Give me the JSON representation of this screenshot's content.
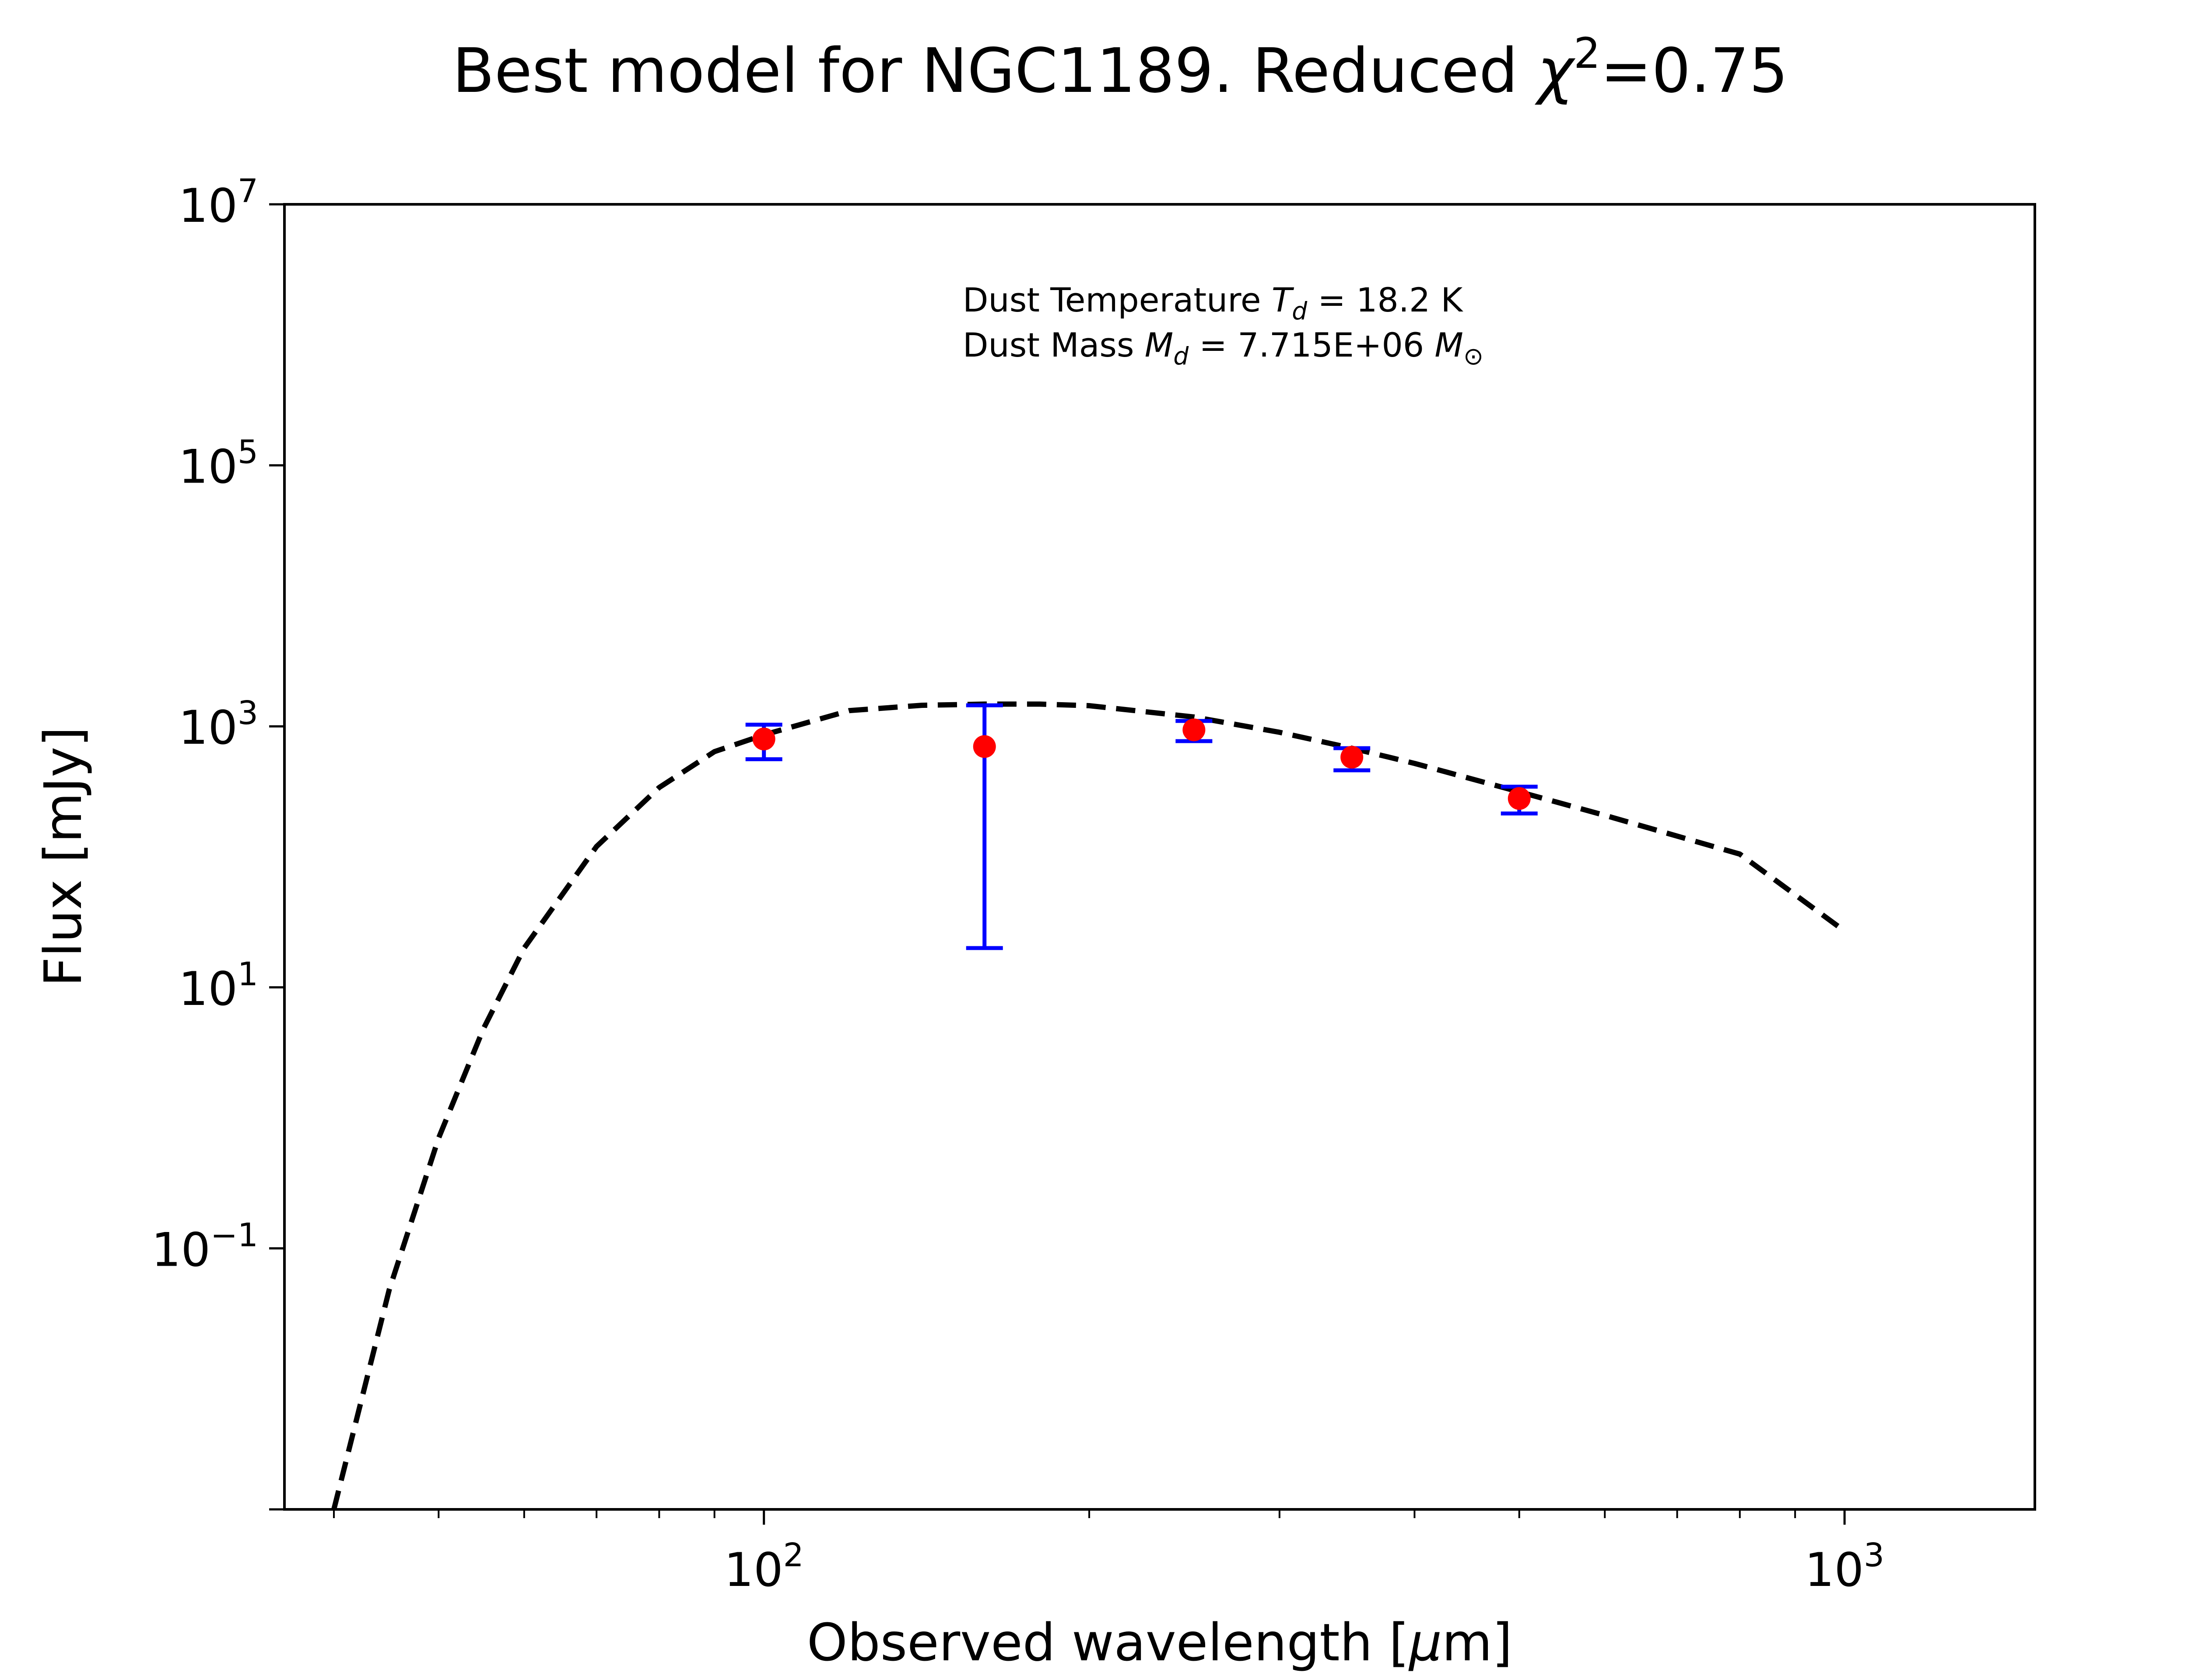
{
  "chart_data": {
    "type": "scatter",
    "title": {
      "main": "Best model for NGC1189. Reduced ",
      "chi": "χ",
      "chi_power": "2",
      "rest": "=0.75"
    },
    "xlabel": {
      "text": "Observed wavelength [",
      "mu": "μ",
      "unit_rest": "m]"
    },
    "ylabel": "Flux [mJy]",
    "x_scale": "log",
    "y_scale": "log",
    "xlim": [
      36,
      1500
    ],
    "ylim": [
      0.001,
      10000000
    ],
    "x_ticks": [
      {
        "value": 100,
        "base": "10",
        "exp": "2"
      },
      {
        "value": 1000,
        "base": "10",
        "exp": "3"
      }
    ],
    "y_ticks": [
      {
        "value": 0.1,
        "base": "10",
        "exp": "−1"
      },
      {
        "value": 10,
        "base": "10",
        "exp": "1"
      },
      {
        "value": 1000,
        "base": "10",
        "exp": "3"
      },
      {
        "value": 100000,
        "base": "10",
        "exp": "5"
      },
      {
        "value": 10000000,
        "base": "10",
        "exp": "7"
      }
    ],
    "annotations": {
      "temperature": {
        "prefix": "Dust Temperature ",
        "sym": "T",
        "sub": "d",
        "value": " = 18.2 K"
      },
      "mass": {
        "prefix": "Dust Mass ",
        "sym": "M",
        "sub": "d",
        "value": " = 7.715E+06 ",
        "unit_sym": "M",
        "unit_sub": "⊙"
      }
    },
    "series": [
      {
        "kind": "model",
        "style": "dashed",
        "color": "#000000",
        "x": [
          40,
          45,
          50,
          55,
          60,
          70,
          80,
          90,
          100,
          120,
          140,
          160,
          180,
          200,
          250,
          300,
          350,
          400,
          500,
          600,
          800,
          1000
        ],
        "y": [
          0.001,
          0.048,
          0.7,
          4.8,
          20,
          120,
          340,
          640,
          860,
          1320,
          1450,
          1480,
          1480,
          1440,
          1180,
          900,
          680,
          520,
          315,
          208,
          105,
          27
        ]
      },
      {
        "kind": "observed",
        "marker_color": "#ff0000",
        "errorbar_color": "#0000ff",
        "points": [
          {
            "x": 100,
            "y": 800,
            "yerr_low": 560,
            "yerr_high": 1030
          },
          {
            "x": 160,
            "y": 700,
            "yerr_low": 20,
            "yerr_high": 1450
          },
          {
            "x": 250,
            "y": 940,
            "yerr_low": 770,
            "yerr_high": 1100
          },
          {
            "x": 350,
            "y": 580,
            "yerr_low": 460,
            "yerr_high": 680
          },
          {
            "x": 500,
            "y": 280,
            "yerr_low": 215,
            "yerr_high": 345
          }
        ]
      }
    ],
    "grid": false
  }
}
